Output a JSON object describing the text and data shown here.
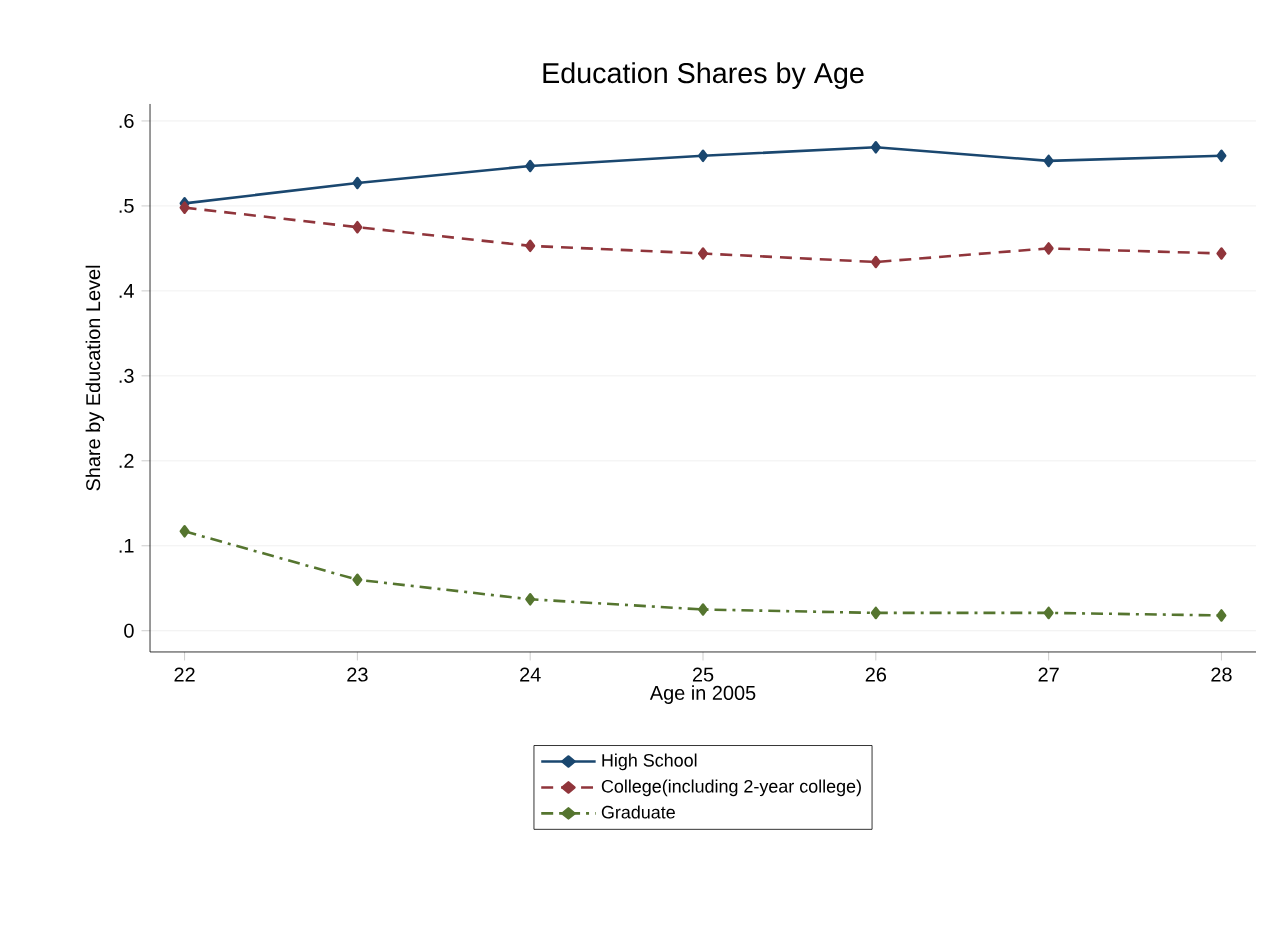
{
  "chart_data": {
    "type": "line",
    "title": "Education Shares by Age",
    "xlabel": "Age in 2005",
    "ylabel": "Share by Education Level",
    "x": [
      22,
      23,
      24,
      25,
      26,
      27,
      28
    ],
    "series": [
      {
        "name": "High School",
        "color": "#1a476f",
        "line_style": "solid",
        "values": [
          0.503,
          0.527,
          0.547,
          0.559,
          0.569,
          0.553,
          0.559
        ]
      },
      {
        "name": "College(including 2-year college)",
        "color": "#90353b",
        "line_style": "dashed",
        "values": [
          0.498,
          0.475,
          0.453,
          0.444,
          0.434,
          0.45,
          0.444
        ]
      },
      {
        "name": "Graduate",
        "color": "#55752f",
        "line_style": "dashdot",
        "values": [
          0.117,
          0.06,
          0.037,
          0.025,
          0.021,
          0.021,
          0.018
        ]
      }
    ],
    "xlim": [
      21.8,
      28.2
    ],
    "xticks": [
      22,
      23,
      24,
      25,
      26,
      27,
      28
    ],
    "ylim": [
      -0.025,
      0.62
    ],
    "yticks": [
      {
        "value": 0,
        "label": "0"
      },
      {
        "value": 0.1,
        "label": ".1"
      },
      {
        "value": 0.2,
        "label": ".2"
      },
      {
        "value": 0.3,
        "label": ".3"
      },
      {
        "value": 0.4,
        "label": ".4"
      },
      {
        "value": 0.5,
        "label": ".5"
      },
      {
        "value": 0.6,
        "label": ".6"
      }
    ],
    "grid": "y",
    "legend": "bottom",
    "marker": "diamond"
  }
}
